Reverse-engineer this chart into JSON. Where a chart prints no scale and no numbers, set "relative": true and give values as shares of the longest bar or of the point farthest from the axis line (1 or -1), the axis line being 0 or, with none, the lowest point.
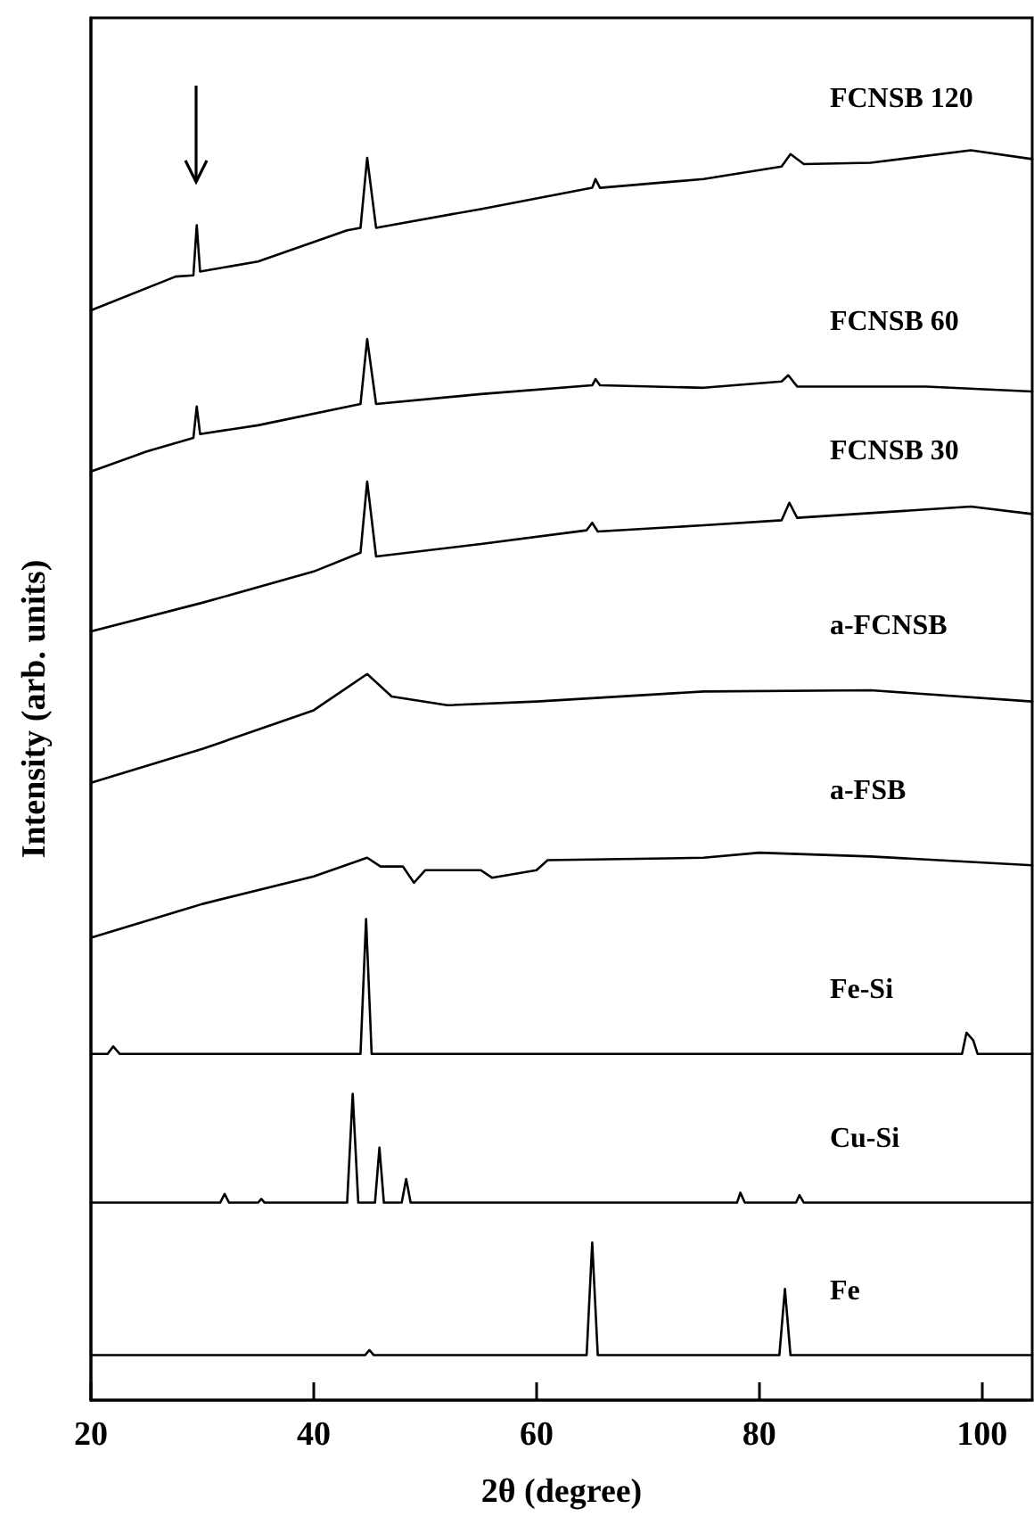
{
  "chart_data": {
    "type": "line",
    "relative": true,
    "xlabel": "2θ (degree)",
    "ylabel": "Intensity (arb. units)",
    "xlim": [
      20,
      104.5
    ],
    "xticks": [
      20,
      40,
      60,
      80,
      100
    ],
    "grid": false,
    "legend": false,
    "marker": "none",
    "line_style": "solid",
    "series": [
      {
        "name": "FCNSB 120",
        "color": "#000000",
        "x": [
          20,
          27.6,
          29.2,
          29.5,
          29.8,
          35,
          43,
          44.2,
          44.8,
          45.6,
          55,
          65,
          65.3,
          65.7,
          75,
          82,
          82.8,
          84,
          90,
          99,
          104.5
        ],
        "values": [
          0.872,
          0.899,
          0.9,
          0.94,
          0.903,
          0.911,
          0.936,
          0.938,
          0.994,
          0.938,
          0.953,
          0.97,
          0.977,
          0.97,
          0.977,
          0.987,
          0.997,
          0.989,
          0.99,
          1,
          0.993
        ]
      },
      {
        "name": "FCNSB 60",
        "color": "#000000",
        "x": [
          20,
          25,
          29.2,
          29.5,
          29.8,
          35,
          44.2,
          44.8,
          45.6,
          55,
          65,
          65.3,
          65.7,
          75,
          82,
          82.6,
          83.4,
          95,
          104.5
        ],
        "values": [
          0.743,
          0.759,
          0.77,
          0.795,
          0.773,
          0.78,
          0.797,
          0.849,
          0.797,
          0.805,
          0.812,
          0.817,
          0.812,
          0.81,
          0.815,
          0.82,
          0.811,
          0.811,
          0.807
        ]
      },
      {
        "name": "FCNSB 30",
        "color": "#000000",
        "x": [
          20,
          30,
          40,
          44.2,
          44.8,
          45.6,
          55,
          64.5,
          65,
          65.5,
          75,
          82,
          82.7,
          83.4,
          99,
          104.5
        ],
        "values": [
          0.615,
          0.638,
          0.663,
          0.678,
          0.735,
          0.675,
          0.685,
          0.696,
          0.702,
          0.695,
          0.7,
          0.704,
          0.718,
          0.706,
          0.715,
          0.709
        ]
      },
      {
        "name": "a-FCNSB",
        "color": "#000000",
        "x": [
          20,
          30,
          40,
          44.8,
          47,
          52,
          60,
          75,
          90,
          104.5
        ],
        "values": [
          0.494,
          0.521,
          0.552,
          0.581,
          0.563,
          0.556,
          0.559,
          0.567,
          0.568,
          0.559
        ]
      },
      {
        "name": "a-FSB",
        "color": "#000000",
        "x": [
          20,
          30,
          40,
          44.8,
          46,
          48,
          49,
          50,
          55,
          56,
          60,
          61,
          75,
          80,
          90,
          104.5
        ],
        "values": [
          0.37,
          0.397,
          0.419,
          0.434,
          0.427,
          0.427,
          0.414,
          0.424,
          0.424,
          0.418,
          0.424,
          0.432,
          0.434,
          0.438,
          0.435,
          0.428
        ]
      },
      {
        "name": "Fe-Si",
        "color": "#000000",
        "x": [
          20,
          21.5,
          22,
          22.6,
          44.2,
          44.7,
          45.2,
          98.2,
          98.6,
          99.2,
          99.6,
          104.5
        ],
        "values": [
          0.277,
          0.277,
          0.283,
          0.277,
          0.277,
          0.385,
          0.277,
          0.277,
          0.294,
          0.288,
          0.277,
          0.277
        ]
      },
      {
        "name": "Cu-Si",
        "color": "#000000",
        "x": [
          20,
          31.6,
          32,
          32.4,
          35,
          35.3,
          35.6,
          43,
          43.5,
          44,
          45.5,
          45.9,
          46.3,
          47.9,
          48.3,
          48.7,
          55,
          78,
          78.3,
          78.7,
          83.3,
          83.6,
          84,
          104.5
        ],
        "values": [
          0.158,
          0.158,
          0.165,
          0.158,
          0.158,
          0.161,
          0.158,
          0.158,
          0.245,
          0.158,
          0.158,
          0.202,
          0.158,
          0.158,
          0.177,
          0.158,
          0.158,
          0.158,
          0.166,
          0.158,
          0.158,
          0.164,
          0.158,
          0.158
        ]
      },
      {
        "name": "Fe",
        "color": "#000000",
        "x": [
          20,
          44.6,
          45,
          45.4,
          64.5,
          65,
          65.5,
          81.8,
          82.3,
          82.8,
          104.5
        ],
        "values": [
          0.036,
          0.036,
          0.04,
          0.036,
          0.036,
          0.126,
          0.036,
          0.036,
          0.089,
          0.036,
          0.036
        ]
      }
    ]
  }
}
